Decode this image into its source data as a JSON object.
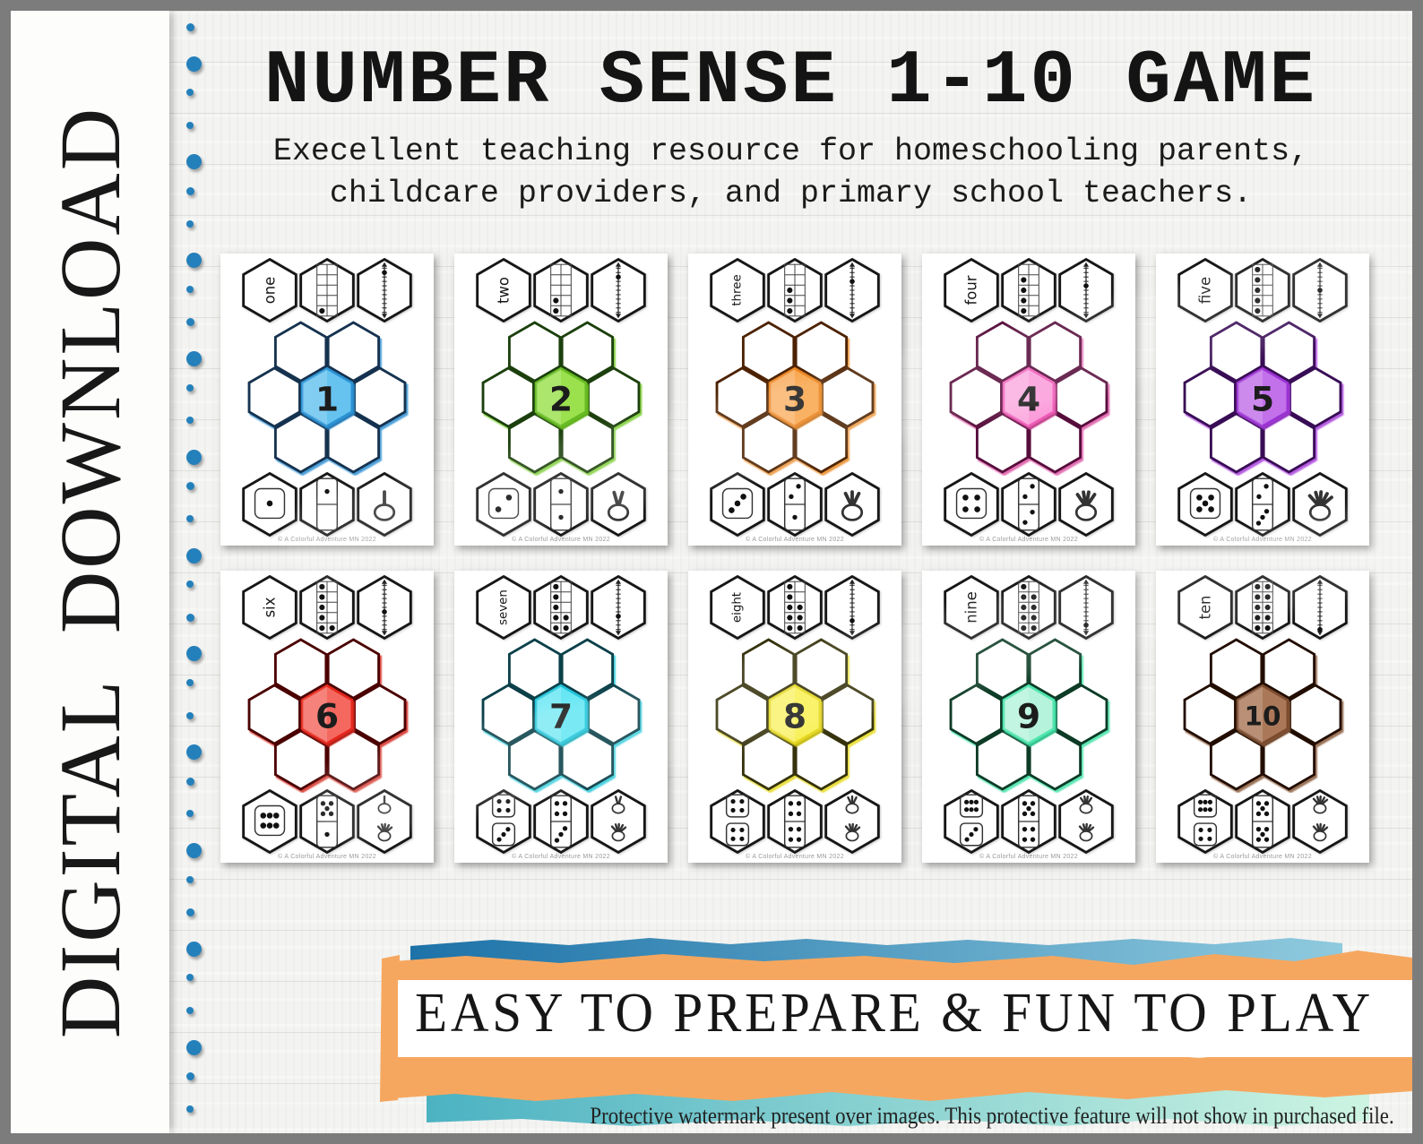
{
  "sidebar": {
    "label": "DIGITAL DOWNLOAD",
    "dot_color": "#2480bb"
  },
  "header": {
    "title": "NUMBER SENSE 1-10 GAME",
    "subtitle_line1": "Execellent teaching resource for homeschooling parents,",
    "subtitle_line2": "childcare providers, and primary school teachers."
  },
  "banner": {
    "text": "EASY TO PREPARE & FUN TO PLAY",
    "blue_gradient": [
      "#1d72a8",
      "#8fcade"
    ],
    "orange": "#f6a75f",
    "teal_gradient": [
      "#4cb2c2",
      "#cdf4e2"
    ]
  },
  "footnote": "Protective watermark present over images. This protective feature will not show in purchased file.",
  "card_footer": "© A Colorful Adventure MN 2022",
  "cards": [
    {
      "number": 1,
      "word": "one",
      "ten_frame": 1,
      "number_line": 1,
      "dice": [
        1
      ],
      "domino": [
        1,
        0
      ],
      "hands": [
        1
      ],
      "colors": {
        "fill": "#66c3f0",
        "stroke": "#2a93d4",
        "edge": "#123350",
        "glow": "#2f8fd2"
      }
    },
    {
      "number": 2,
      "word": "two",
      "ten_frame": 2,
      "number_line": 2,
      "dice": [
        2
      ],
      "domino": [
        1,
        1
      ],
      "hands": [
        2
      ],
      "colors": {
        "fill": "#9ae14e",
        "stroke": "#66bb22",
        "edge": "#1d400c",
        "glow": "#71c926"
      }
    },
    {
      "number": 3,
      "word": "three",
      "ten_frame": 3,
      "number_line": 3,
      "dice": [
        3
      ],
      "domino": [
        2,
        1
      ],
      "hands": [
        3
      ],
      "colors": {
        "fill": "#f8a750",
        "stroke": "#ec831f",
        "edge": "#4d2406",
        "glow": "#e98a27"
      }
    },
    {
      "number": 4,
      "word": "four",
      "ten_frame": 4,
      "number_line": 4,
      "dice": [
        4
      ],
      "domino": [
        2,
        2
      ],
      "hands": [
        4
      ],
      "colors": {
        "fill": "#fb9edb",
        "stroke": "#ef5cb8",
        "edge": "#570e3a",
        "glow": "#dd55a5"
      }
    },
    {
      "number": 5,
      "word": "five",
      "ten_frame": 5,
      "number_line": 5,
      "dice": [
        5
      ],
      "domino": [
        2,
        3
      ],
      "hands": [
        5
      ],
      "colors": {
        "fill": "#c271ea",
        "stroke": "#9c33d4",
        "edge": "#380955",
        "glow": "#a83fdc"
      }
    },
    {
      "number": 6,
      "word": "six",
      "ten_frame": 6,
      "number_line": 6,
      "dice": [
        6
      ],
      "domino": [
        5,
        1
      ],
      "hands": [
        5,
        1
      ],
      "colors": {
        "fill": "#f5675e",
        "stroke": "#e6281a",
        "edge": "#4c0606",
        "glow": "#d3291c"
      }
    },
    {
      "number": 7,
      "word": "seven",
      "ten_frame": 7,
      "number_line": 7,
      "dice": [
        4,
        3
      ],
      "domino": [
        4,
        3
      ],
      "hands": [
        5,
        2
      ],
      "colors": {
        "fill": "#66e7f3",
        "stroke": "#22c5da",
        "edge": "#07404a",
        "glow": "#28c9da"
      }
    },
    {
      "number": 8,
      "word": "eight",
      "ten_frame": 8,
      "number_line": 8,
      "dice": [
        4,
        4
      ],
      "domino": [
        4,
        4
      ],
      "hands": [
        5,
        3
      ],
      "colors": {
        "fill": "#f8f055",
        "stroke": "#e5d71c",
        "edge": "#35330a",
        "glow": "#e6da20"
      }
    },
    {
      "number": 9,
      "word": "nine",
      "ten_frame": 9,
      "number_line": 9,
      "dice": [
        6,
        3
      ],
      "domino": [
        5,
        4
      ],
      "hands": [
        5,
        4
      ],
      "colors": {
        "fill": "#b5f3dc",
        "stroke": "#50e5ae",
        "edge": "#0b3b27",
        "glow": "#3fe2a7"
      }
    },
    {
      "number": 10,
      "word": "ten",
      "ten_frame": 10,
      "number_line": 10,
      "dice": [
        6,
        4
      ],
      "domino": [
        5,
        5
      ],
      "hands": [
        5,
        5
      ],
      "colors": {
        "fill": "#aa7858",
        "stroke": "#7c4b2d",
        "edge": "#231004",
        "glow": "#8a5c3c"
      }
    }
  ]
}
